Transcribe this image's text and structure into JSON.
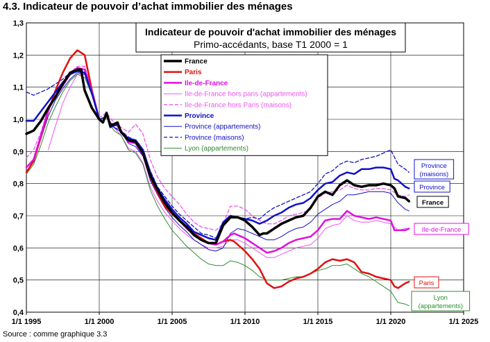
{
  "page": {
    "title": "4.3. Indicateur de pouvoir d’achat immobilier des ménages",
    "source": "Source : comme graphique 3.3"
  },
  "chart_data": {
    "type": "line",
    "title": "Indicateur de pouvoir d'achat immobilier des ménages",
    "subtitle": "Primo-accédants, base T1 2000 = 1",
    "xlabel": "",
    "ylabel": "",
    "x_ticks": [
      "1/1 1995",
      "1/1 2000",
      "1/1 2005",
      "1/1 2010",
      "1/1 2015",
      "1/1 2020",
      "1/1 2025"
    ],
    "y_ticks": [
      "0,4",
      "0,5",
      "0,6",
      "0,7",
      "0,8",
      "0,9",
      "1,0",
      "1,1",
      "1,2",
      "1,3"
    ],
    "xlim": [
      1995,
      2025
    ],
    "ylim": [
      0.4,
      1.3
    ],
    "grid": true,
    "legend_position": "top-center",
    "series": [
      {
        "name": "France",
        "legend": "France",
        "color": "#000000",
        "width": 3.5,
        "dash": "",
        "end_label": "France",
        "x": [
          1995,
          1995.5,
          1996,
          1996.5,
          1997,
          1997.5,
          1998,
          1998.5,
          1998.75,
          1999,
          1999.5,
          2000,
          2000.25,
          2000.5,
          2000.75,
          2001,
          2001.25,
          2001.5,
          2002,
          2002.5,
          2003,
          2003.5,
          2004,
          2004.5,
          2005,
          2005.5,
          2006,
          2006.5,
          2007,
          2007.5,
          2008,
          2008.5,
          2009,
          2009.25,
          2009.5,
          2010,
          2010.5,
          2011,
          2011.25,
          2011.5,
          2012,
          2012.5,
          2013,
          2013.5,
          2014,
          2014.5,
          2015,
          2015.5,
          2016,
          2016.5,
          2017,
          2017.5,
          2018,
          2018.5,
          2019,
          2019.5,
          2020,
          2020.25,
          2020.5,
          2021,
          2021.25
        ],
        "y": [
          0.955,
          0.965,
          0.995,
          1.035,
          1.07,
          1.11,
          1.145,
          1.155,
          1.155,
          1.09,
          1.035,
          1.0,
          0.99,
          1.02,
          0.98,
          0.985,
          0.99,
          0.96,
          0.935,
          0.93,
          0.895,
          0.825,
          0.78,
          0.74,
          0.71,
          0.685,
          0.665,
          0.64,
          0.625,
          0.615,
          0.615,
          0.67,
          0.695,
          0.695,
          0.695,
          0.685,
          0.665,
          0.64,
          0.645,
          0.645,
          0.66,
          0.675,
          0.685,
          0.695,
          0.7,
          0.725,
          0.76,
          0.775,
          0.765,
          0.795,
          0.81,
          0.795,
          0.79,
          0.795,
          0.795,
          0.8,
          0.795,
          0.785,
          0.76,
          0.755,
          0.745
        ]
      },
      {
        "name": "Paris",
        "legend": "Paris",
        "color": "#e01010",
        "width": 2.5,
        "dash": "",
        "end_label": "Paris",
        "x": [
          1995,
          1995.5,
          1996,
          1996.5,
          1997,
          1997.5,
          1998,
          1998.5,
          1999,
          1999.5,
          2000,
          2000.25,
          2000.5,
          2000.75,
          2001,
          2001.25,
          2001.5,
          2002,
          2002.5,
          2003,
          2003.5,
          2004,
          2004.5,
          2005,
          2005.5,
          2006,
          2006.5,
          2007,
          2007.5,
          2008,
          2008.5,
          2009,
          2009.25,
          2009.5,
          2010,
          2010.5,
          2011,
          2011.5,
          2012,
          2012.5,
          2013,
          2013.5,
          2014,
          2014.5,
          2015,
          2015.5,
          2016,
          2016.5,
          2017,
          2017.5,
          2018,
          2018.5,
          2019,
          2019.5,
          2020,
          2020.25,
          2020.5,
          2021,
          2021.25
        ],
        "y": [
          0.835,
          0.87,
          0.945,
          1.025,
          1.09,
          1.145,
          1.19,
          1.215,
          1.2,
          1.09,
          1.0,
          0.99,
          1.02,
          0.985,
          0.985,
          0.98,
          0.96,
          0.935,
          0.925,
          0.89,
          0.82,
          0.77,
          0.73,
          0.705,
          0.685,
          0.665,
          0.645,
          0.63,
          0.615,
          0.61,
          0.62,
          0.625,
          0.62,
          0.61,
          0.59,
          0.565,
          0.535,
          0.49,
          0.475,
          0.48,
          0.495,
          0.505,
          0.51,
          0.52,
          0.535,
          0.555,
          0.565,
          0.56,
          0.565,
          0.555,
          0.525,
          0.52,
          0.51,
          0.505,
          0.5,
          0.48,
          0.475,
          0.49,
          0.495
        ]
      },
      {
        "name": "Ile-de-France",
        "legend": "Ile-de-France",
        "color": "#e010e0",
        "width": 2.5,
        "dash": "",
        "end_label": "Ile-de-France",
        "x": [
          1995,
          1995.5,
          1996,
          1996.5,
          1997,
          1997.5,
          1998,
          1998.5,
          1999,
          1999.5,
          2000,
          2000.25,
          2000.5,
          2000.75,
          2001,
          2001.25,
          2001.5,
          2002,
          2002.5,
          2003,
          2003.5,
          2004,
          2004.5,
          2005,
          2005.5,
          2006,
          2006.5,
          2007,
          2007.5,
          2008,
          2008.5,
          2009,
          2009.25,
          2009.5,
          2010,
          2010.5,
          2011,
          2011.5,
          2012,
          2012.5,
          2013,
          2013.5,
          2014,
          2014.5,
          2015,
          2015.5,
          2016,
          2016.5,
          2017,
          2017.5,
          2018,
          2018.5,
          2019,
          2019.5,
          2020,
          2020.25,
          2020.5,
          2021,
          2021.25
        ],
        "y": [
          0.85,
          0.875,
          0.95,
          1.03,
          1.07,
          1.105,
          1.14,
          1.16,
          1.155,
          1.085,
          1.0,
          0.99,
          1.02,
          0.98,
          0.985,
          0.98,
          0.965,
          0.93,
          0.925,
          0.89,
          0.825,
          0.775,
          0.74,
          0.71,
          0.685,
          0.66,
          0.64,
          0.625,
          0.615,
          0.61,
          0.62,
          0.64,
          0.645,
          0.64,
          0.63,
          0.615,
          0.6,
          0.585,
          0.59,
          0.6,
          0.615,
          0.625,
          0.63,
          0.635,
          0.655,
          0.685,
          0.69,
          0.69,
          0.715,
          0.7,
          0.695,
          0.69,
          0.695,
          0.69,
          0.685,
          0.655,
          0.655,
          0.655,
          0.66
        ]
      },
      {
        "name": "Ile-de-France hors paris (appartements)",
        "legend": "Ile-de-France hors paris (appartements)",
        "color": "#ee55ee",
        "width": 1,
        "dash": "",
        "end_label": "",
        "x": [
          1996.5,
          1997,
          1997.5,
          1998,
          1998.5,
          1999,
          1999.5,
          2000,
          2000.5,
          2001,
          2001.5,
          2002,
          2002.5,
          2003,
          2003.5,
          2004,
          2004.5,
          2005,
          2005.5,
          2006,
          2006.5,
          2007,
          2007.5,
          2008,
          2008.5,
          2009,
          2009.5,
          2010,
          2010.5,
          2011,
          2011.5,
          2012,
          2012.5,
          2013,
          2013.5,
          2014,
          2014.5,
          2015,
          2015.5,
          2016,
          2016.5,
          2017,
          2017.5,
          2018,
          2018.5,
          2019,
          2019.5,
          2020,
          2020.5,
          2021,
          2021.25
        ],
        "y": [
          0.905,
          0.98,
          1.05,
          1.1,
          1.14,
          1.14,
          1.075,
          1.0,
          1.01,
          0.975,
          0.95,
          0.91,
          0.9,
          0.865,
          0.79,
          0.745,
          0.71,
          0.685,
          0.66,
          0.64,
          0.625,
          0.61,
          0.6,
          0.6,
          0.605,
          0.625,
          0.625,
          0.615,
          0.6,
          0.585,
          0.57,
          0.57,
          0.58,
          0.59,
          0.6,
          0.605,
          0.61,
          0.63,
          0.66,
          0.67,
          0.675,
          0.7,
          0.685,
          0.68,
          0.68,
          0.685,
          0.68,
          0.675,
          0.655,
          0.66,
          0.66
        ]
      },
      {
        "name": "Ile-de-France hors Paris (maisons)",
        "legend": "Ile-de-France hors Paris (maisons)",
        "color": "#ee55ee",
        "width": 1.3,
        "dash": "5,3",
        "end_label": "",
        "x": [
          1995,
          1995.5,
          1996,
          1996.5,
          1997,
          1997.5,
          1998,
          1998.5,
          1999,
          1999.5,
          2000,
          2000.5,
          2001,
          2001.5,
          2002,
          2002.5,
          2003,
          2003.5,
          2004,
          2004.5,
          2005,
          2005.5,
          2006,
          2006.5,
          2007,
          2007.5,
          2008,
          2008.5,
          2009,
          2009.5,
          2010,
          2010.5,
          2011,
          2011.5,
          2012,
          2012.5,
          2013,
          2013.5,
          2014,
          2014.5,
          2015,
          2015.5,
          2016,
          2016.5,
          2017,
          2017.5,
          2018,
          2018.5,
          2019,
          2019.5,
          2020,
          2020.5,
          2021,
          2021.25
        ],
        "y": [
          0.88,
          0.905,
          0.96,
          1.03,
          1.08,
          1.115,
          1.145,
          1.165,
          1.165,
          1.09,
          1.005,
          1.02,
          0.99,
          0.975,
          0.96,
          0.985,
          0.955,
          0.875,
          0.82,
          0.785,
          0.76,
          0.735,
          0.705,
          0.68,
          0.665,
          0.66,
          0.655,
          0.675,
          0.73,
          0.73,
          0.72,
          0.7,
          0.685,
          0.675,
          0.675,
          0.685,
          0.7,
          0.705,
          0.71,
          0.72,
          0.755,
          0.77,
          0.775,
          0.78,
          0.795,
          0.785,
          0.78,
          0.78,
          0.785,
          0.785,
          0.78,
          0.765,
          0.76,
          0.765
        ]
      },
      {
        "name": "Province",
        "legend": "Province",
        "color": "#1010c8",
        "width": 2.5,
        "dash": "",
        "end_label": "Province",
        "x": [
          1995,
          1995.5,
          1996,
          1996.5,
          1997,
          1997.5,
          1998,
          1998.5,
          1999,
          1999.5,
          2000,
          2000.25,
          2000.5,
          2000.75,
          2001,
          2001.25,
          2001.5,
          2002,
          2002.5,
          2003,
          2003.5,
          2004,
          2004.5,
          2005,
          2005.5,
          2006,
          2006.5,
          2007,
          2007.5,
          2008,
          2008.5,
          2009,
          2009.5,
          2010,
          2010.5,
          2011,
          2011.5,
          2012,
          2012.5,
          2013,
          2013.5,
          2014,
          2014.5,
          2015,
          2015.5,
          2016,
          2016.5,
          2017,
          2017.5,
          2018,
          2018.5,
          2019,
          2019.5,
          2020,
          2020.25,
          2020.5,
          2021,
          2021.25
        ],
        "y": [
          0.995,
          0.995,
          1.025,
          1.055,
          1.085,
          1.115,
          1.14,
          1.15,
          1.145,
          1.08,
          1.0,
          0.99,
          1.02,
          0.975,
          0.98,
          0.985,
          0.96,
          0.94,
          0.935,
          0.905,
          0.835,
          0.785,
          0.75,
          0.72,
          0.695,
          0.675,
          0.65,
          0.64,
          0.63,
          0.625,
          0.68,
          0.7,
          0.695,
          0.69,
          0.685,
          0.675,
          0.685,
          0.7,
          0.71,
          0.725,
          0.735,
          0.74,
          0.755,
          0.78,
          0.8,
          0.805,
          0.825,
          0.835,
          0.83,
          0.845,
          0.845,
          0.85,
          0.85,
          0.845,
          0.815,
          0.81,
          0.79,
          0.785
        ]
      },
      {
        "name": "Province (appartements)",
        "legend": "Province (appartements)",
        "color": "#1010c8",
        "width": 1,
        "dash": "",
        "end_label": "",
        "x": [
          1995,
          1995.5,
          1996,
          1996.5,
          1997,
          1997.5,
          1998,
          1998.5,
          1999,
          1999.5,
          2000,
          2000.5,
          2001,
          2001.5,
          2002,
          2002.5,
          2003,
          2003.5,
          2004,
          2004.5,
          2005,
          2005.5,
          2006,
          2006.5,
          2007,
          2007.5,
          2008,
          2008.5,
          2009,
          2009.5,
          2010,
          2010.5,
          2011,
          2011.5,
          2012,
          2012.5,
          2013,
          2013.5,
          2014,
          2014.5,
          2015,
          2015.5,
          2016,
          2016.5,
          2017,
          2017.5,
          2018,
          2018.5,
          2019,
          2019.5,
          2020,
          2020.5,
          2021,
          2021.25
        ],
        "y": [
          0.85,
          0.875,
          0.94,
          1.01,
          1.06,
          1.095,
          1.125,
          1.145,
          1.14,
          1.075,
          1.0,
          1.01,
          0.975,
          0.96,
          0.925,
          0.915,
          0.885,
          0.81,
          0.765,
          0.725,
          0.695,
          0.67,
          0.65,
          0.625,
          0.61,
          0.595,
          0.59,
          0.6,
          0.645,
          0.66,
          0.655,
          0.645,
          0.635,
          0.625,
          0.625,
          0.635,
          0.65,
          0.66,
          0.665,
          0.68,
          0.705,
          0.72,
          0.735,
          0.745,
          0.765,
          0.765,
          0.77,
          0.775,
          0.775,
          0.775,
          0.77,
          0.74,
          0.72,
          0.715
        ]
      },
      {
        "name": "Province (maisons)",
        "legend": "Province (maisons)",
        "color": "#1010c8",
        "width": 1.3,
        "dash": "5,3",
        "end_label": "Province\n(maisons)",
        "x": [
          1995,
          1995.5,
          1996,
          1996.5,
          1997,
          1997.5,
          1998,
          1998.5,
          1999,
          1999.5,
          2000,
          2000.5,
          2001,
          2001.5,
          2002,
          2002.5,
          2003,
          2003.5,
          2004,
          2004.5,
          2005,
          2005.5,
          2006,
          2006.5,
          2007,
          2007.5,
          2008,
          2008.5,
          2009,
          2009.5,
          2010,
          2010.5,
          2011,
          2011.5,
          2012,
          2012.5,
          2013,
          2013.5,
          2014,
          2014.5,
          2015,
          2015.5,
          2016,
          2016.5,
          2017,
          2017.5,
          2018,
          2018.5,
          2019,
          2019.5,
          2020,
          2020.5,
          2021,
          2021.25
        ],
        "y": [
          1.085,
          1.075,
          1.085,
          1.095,
          1.11,
          1.125,
          1.145,
          1.155,
          1.15,
          1.08,
          1.0,
          1.01,
          0.975,
          0.965,
          0.945,
          0.935,
          0.905,
          0.84,
          0.79,
          0.76,
          0.73,
          0.705,
          0.685,
          0.665,
          0.645,
          0.64,
          0.63,
          0.675,
          0.695,
          0.695,
          0.69,
          0.695,
          0.69,
          0.71,
          0.725,
          0.735,
          0.745,
          0.755,
          0.765,
          0.775,
          0.8,
          0.83,
          0.84,
          0.86,
          0.87,
          0.865,
          0.875,
          0.88,
          0.885,
          0.895,
          0.905,
          0.86,
          0.845,
          0.835
        ]
      },
      {
        "name": "Lyon (appartements)",
        "legend": "Lyon (appartements)",
        "color": "#2e8b2e",
        "width": 1,
        "dash": "",
        "end_label": "Lyon\n(appartements)",
        "x": [
          1995,
          1995.5,
          1996,
          1996.5,
          1997,
          1997.5,
          1998,
          1998.5,
          1999,
          1999.5,
          2000,
          2000.5,
          2001,
          2001.5,
          2002,
          2002.5,
          2003,
          2003.5,
          2004,
          2004.5,
          2005,
          2005.5,
          2006,
          2006.5,
          2007,
          2007.5,
          2008,
          2008.5,
          2009,
          2009.5,
          2010,
          2010.5,
          2011,
          2011.5,
          2012,
          2012.5,
          2013,
          2013.5,
          2014,
          2014.5,
          2015,
          2015.5,
          2016,
          2016.5,
          2017,
          2017.5,
          2018,
          2018.5,
          2019,
          2019.5,
          2020,
          2020.5,
          2021,
          2021.25
        ],
        "y": [
          0.83,
          0.86,
          0.92,
          0.99,
          1.04,
          1.085,
          1.12,
          1.14,
          1.13,
          1.075,
          1.0,
          1.005,
          0.965,
          0.95,
          0.905,
          0.895,
          0.86,
          0.78,
          0.73,
          0.69,
          0.655,
          0.63,
          0.605,
          0.585,
          0.565,
          0.55,
          0.545,
          0.545,
          0.56,
          0.555,
          0.545,
          0.53,
          0.51,
          0.5,
          0.5,
          0.5,
          0.505,
          0.51,
          0.51,
          0.52,
          0.53,
          0.535,
          0.545,
          0.545,
          0.55,
          0.535,
          0.52,
          0.51,
          0.495,
          0.48,
          0.465,
          0.43,
          0.425,
          0.42
        ]
      }
    ]
  }
}
